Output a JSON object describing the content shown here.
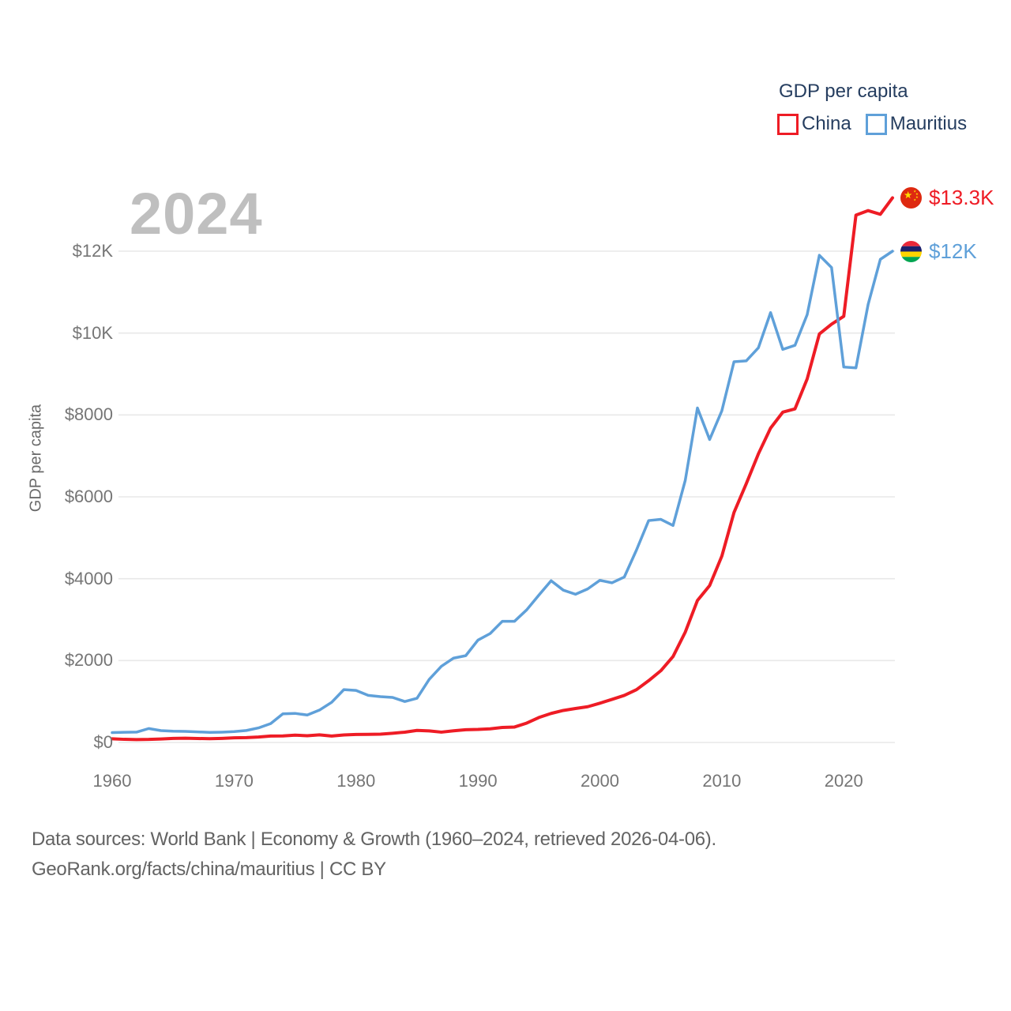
{
  "watermark": "2024",
  "legend": {
    "title": "GDP per capita",
    "items": [
      {
        "label": "China",
        "color": "#ee1c25"
      },
      {
        "label": "Mauritius",
        "color": "#5fa0d9"
      }
    ]
  },
  "end_labels": [
    {
      "series": "China",
      "flag_icon": "china-flag-icon",
      "text": "$13.3K",
      "color": "#ee1c25"
    },
    {
      "series": "Mauritius",
      "flag_icon": "mauritius-flag-icon",
      "text": "$12K",
      "color": "#5fa0d9"
    }
  ],
  "y_axis": {
    "title": "GDP per capita",
    "ticks": [
      {
        "label": "$0",
        "value": 0
      },
      {
        "label": "$2000",
        "value": 2000
      },
      {
        "label": "$4000",
        "value": 4000
      },
      {
        "label": "$6000",
        "value": 6000
      },
      {
        "label": "$8000",
        "value": 8000
      },
      {
        "label": "$10K",
        "value": 10000
      },
      {
        "label": "$12K",
        "value": 12000
      }
    ]
  },
  "x_axis": {
    "ticks": [
      {
        "label": "1960",
        "value": 1960
      },
      {
        "label": "1970",
        "value": 1970
      },
      {
        "label": "1980",
        "value": 1980
      },
      {
        "label": "1990",
        "value": 1990
      },
      {
        "label": "2000",
        "value": 2000
      },
      {
        "label": "2010",
        "value": 2010
      },
      {
        "label": "2020",
        "value": 2020
      }
    ]
  },
  "footer": {
    "line1": "Data sources: World Bank | Economy & Growth (1960–2024, retrieved 2026-04-06).",
    "line2": "GeoRank.org/facts/china/mauritius | CC BY"
  },
  "chart_data": {
    "type": "line",
    "title": "GDP per capita",
    "ylabel": "GDP per capita",
    "xlim": [
      1960,
      2024
    ],
    "ylim": [
      0,
      12700
    ],
    "grid": true,
    "legend_position": "top-right",
    "x": [
      1960,
      1961,
      1962,
      1963,
      1964,
      1965,
      1966,
      1967,
      1968,
      1969,
      1970,
      1971,
      1972,
      1973,
      1974,
      1975,
      1976,
      1977,
      1978,
      1979,
      1980,
      1981,
      1982,
      1983,
      1984,
      1985,
      1986,
      1987,
      1988,
      1989,
      1990,
      1991,
      1992,
      1993,
      1994,
      1995,
      1996,
      1997,
      1998,
      1999,
      2000,
      2001,
      2002,
      2003,
      2004,
      2005,
      2006,
      2007,
      2008,
      2009,
      2010,
      2011,
      2012,
      2013,
      2014,
      2015,
      2016,
      2017,
      2018,
      2019,
      2020,
      2021,
      2022,
      2023,
      2024
    ],
    "series": [
      {
        "name": "China",
        "color": "#ee1c25",
        "end_value_label": "$13.3K",
        "values": [
          90,
          76,
          71,
          74,
          85,
          98,
          104,
          97,
          91,
          100,
          113,
          119,
          132,
          157,
          160,
          178,
          165,
          185,
          156,
          184,
          195,
          197,
          203,
          225,
          251,
          294,
          282,
          252,
          284,
          311,
          318,
          333,
          366,
          377,
          473,
          610,
          709,
          782,
          829,
          873,
          959,
          1053,
          1149,
          1289,
          1509,
          1753,
          2099,
          2694,
          3468,
          3832,
          4550,
          5618,
          6317,
          7050,
          7679,
          8067,
          8148,
          8879,
          9977,
          10217,
          10409,
          12880,
          12990,
          12900,
          13303
        ]
      },
      {
        "name": "Mauritius",
        "color": "#5fa0d9",
        "end_value_label": "$12K",
        "values": [
          240,
          248,
          253,
          340,
          290,
          275,
          270,
          258,
          245,
          252,
          265,
          292,
          355,
          460,
          700,
          710,
          670,
          790,
          980,
          1290,
          1270,
          1150,
          1120,
          1100,
          1000,
          1080,
          1540,
          1860,
          2060,
          2120,
          2500,
          2660,
          2960,
          2960,
          3240,
          3600,
          3950,
          3720,
          3620,
          3750,
          3960,
          3900,
          4040,
          4700,
          5420,
          5450,
          5300,
          6400,
          8170,
          7400,
          8100,
          9300,
          9320,
          9640,
          10500,
          9600,
          9700,
          10450,
          11900,
          11600,
          9170,
          9150,
          10700,
          11800,
          12000
        ]
      }
    ]
  }
}
